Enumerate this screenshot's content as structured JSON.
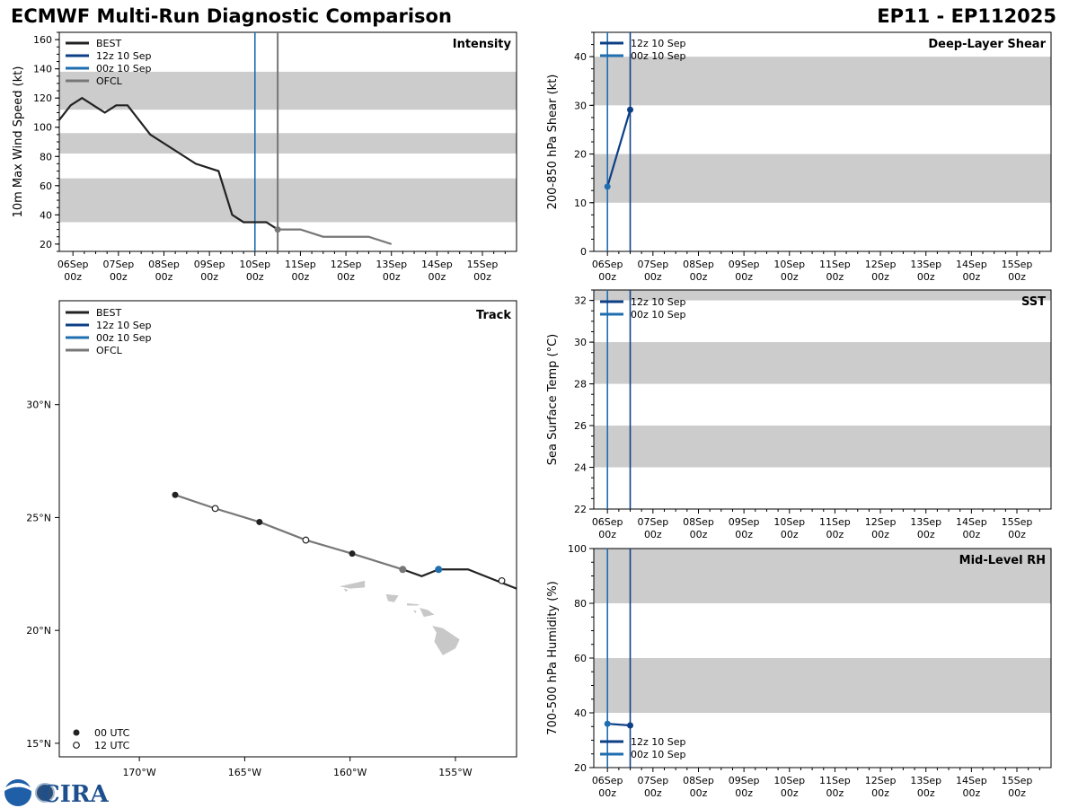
{
  "header": {
    "title": "ECMWF Multi-Run Diagnostic Comparison",
    "storm_id": "EP11 - EP112025"
  },
  "colors": {
    "best": "#222222",
    "run_12z": "#0d3f86",
    "run_00z": "#1f6eb0",
    "ofcl": "#777777",
    "band": "#cccccc"
  },
  "time_axis": {
    "labels": [
      [
        "06Sep",
        "00z"
      ],
      [
        "07Sep",
        "00z"
      ],
      [
        "08Sep",
        "00z"
      ],
      [
        "09Sep",
        "00z"
      ],
      [
        "10Sep",
        "00z"
      ],
      [
        "11Sep",
        "00z"
      ],
      [
        "12Sep",
        "00z"
      ],
      [
        "13Sep",
        "00z"
      ],
      [
        "14Sep",
        "00z"
      ],
      [
        "15Sep",
        "00z"
      ]
    ],
    "range_days": [
      -0.3,
      9.75
    ]
  },
  "logo": {
    "text": "CIRA",
    "badge": "NOAA"
  },
  "chart_data": [
    {
      "id": "intensity",
      "type": "line",
      "title": "Intensity",
      "ylabel": "10m Max Wind Speed (kt)",
      "ylim": [
        15,
        165
      ],
      "yticks": [
        20,
        40,
        60,
        80,
        100,
        120,
        140,
        160
      ],
      "bands": [
        [
          35,
          65
        ],
        [
          82,
          96
        ],
        [
          112,
          138
        ]
      ],
      "legend": [
        "BEST",
        "12z 10 Sep",
        "00z 10 Sep",
        "OFCL"
      ],
      "vlines": [
        {
          "x": 0.0,
          "series": "00z 10 Sep"
        },
        {
          "x": 0.5,
          "series": "OFCL"
        }
      ],
      "series": [
        {
          "name": "BEST",
          "x": [
            -4.3,
            -4.05,
            -3.8,
            -3.3,
            -3.05,
            -2.8,
            -2.3,
            -1.8,
            -1.3,
            -0.8,
            -0.5,
            -0.25,
            0.0,
            0.25,
            0.5
          ],
          "y": [
            105,
            115,
            120,
            110,
            115,
            115,
            95,
            85,
            75,
            70,
            40,
            35,
            35,
            35,
            30
          ]
        },
        {
          "name": "OFCL",
          "x": [
            0.5,
            1.0,
            1.5,
            2.0,
            2.5,
            3.0
          ],
          "y": [
            30,
            30,
            25,
            25,
            25,
            20
          ],
          "marker_x": 0.5,
          "marker_y": 30
        }
      ],
      "x_offset_days": 4
    },
    {
      "id": "shear",
      "type": "line",
      "title": "Deep-Layer Shear",
      "ylabel": "200-850 hPa Shear (kt)",
      "ylim": [
        0,
        45
      ],
      "yticks": [
        0,
        10,
        20,
        30,
        40
      ],
      "bands": [
        [
          10,
          20
        ],
        [
          30,
          40
        ]
      ],
      "legend": [
        "12z 10 Sep",
        "00z 10 Sep"
      ],
      "series": [
        {
          "name": "12z 10 Sep",
          "x": [
            0.0,
            0.5
          ],
          "y": [
            13.3,
            29.1
          ]
        }
      ],
      "points": [
        {
          "name": "00z 10 Sep",
          "x": 0.0,
          "y": 13.3
        },
        {
          "name": "12z 10 Sep",
          "x": 0.5,
          "y": 29.1
        }
      ]
    },
    {
      "id": "sst",
      "type": "line",
      "title": "SST",
      "ylabel": "Sea Surface Temp (°C)",
      "ylim": [
        22,
        32.5
      ],
      "yticks": [
        22,
        24,
        26,
        28,
        30,
        32
      ],
      "bands": [
        [
          24,
          26
        ],
        [
          28,
          30
        ],
        [
          32,
          32.5
        ]
      ],
      "legend": [
        "12z 10 Sep",
        "00z 10 Sep"
      ],
      "series": []
    },
    {
      "id": "rh",
      "type": "line",
      "title": "Mid-Level RH",
      "ylabel": "700-500 hPa Humidity (%)",
      "ylim": [
        20,
        100
      ],
      "yticks": [
        20,
        40,
        60,
        80,
        100
      ],
      "bands": [
        [
          40,
          60
        ],
        [
          80,
          100
        ]
      ],
      "legend": [
        "12z 10 Sep",
        "00z 10 Sep"
      ],
      "series": [
        {
          "name": "12z 10 Sep",
          "x": [
            0.0,
            0.5
          ],
          "y": [
            36,
            35.4
          ]
        }
      ],
      "points": [
        {
          "name": "00z 10 Sep",
          "x": 0.0,
          "y": 36
        },
        {
          "name": "12z 10 Sep",
          "x": 0.5,
          "y": 35.4
        }
      ]
    },
    {
      "id": "track",
      "type": "scatter",
      "title": "Track",
      "xlim": [
        -173.8,
        -152.1
      ],
      "ylim": [
        14.4,
        34.6
      ],
      "xticks": [
        {
          "v": -170,
          "label": "170°W"
        },
        {
          "v": -165,
          "label": "165°W"
        },
        {
          "v": -160,
          "label": "160°W"
        },
        {
          "v": -155,
          "label": "155°W"
        }
      ],
      "yticks": [
        {
          "v": 15,
          "label": "15°N"
        },
        {
          "v": 20,
          "label": "20°N"
        },
        {
          "v": 25,
          "label": "25°N"
        },
        {
          "v": 30,
          "label": "30°N"
        }
      ],
      "legend": [
        "BEST",
        "12z 10 Sep",
        "00z 10 Sep",
        "OFCL"
      ],
      "marker_legend": [
        "00 UTC",
        "12 UTC"
      ],
      "best": {
        "lon": [
          -155.8,
          -154.4,
          -152.1
        ],
        "lat": [
          22.7,
          22.7,
          21.85
        ]
      },
      "ofcl": {
        "lon": [
          -168.3,
          -166.4,
          -164.3,
          -162.1,
          -159.9,
          -157.5
        ],
        "lat": [
          26.0,
          25.4,
          24.8,
          24.0,
          23.4,
          22.7
        ]
      },
      "ofcl_best_join": {
        "lon": [
          -157.5,
          -156.6,
          -155.8
        ],
        "lat": [
          22.7,
          22.4,
          22.7
        ]
      },
      "markers_00utc": [
        {
          "lon": -168.3,
          "lat": 26.0
        },
        {
          "lon": -164.3,
          "lat": 24.8
        },
        {
          "lon": -159.9,
          "lat": 23.4
        }
      ],
      "markers_12utc": [
        {
          "lon": -166.4,
          "lat": 25.4
        },
        {
          "lon": -162.1,
          "lat": 24.0
        },
        {
          "lon": -152.8,
          "lat": 22.2
        }
      ],
      "marker_ofcl_start": {
        "lon": -157.5,
        "lat": 22.7
      },
      "marker_current": {
        "lon": -155.8,
        "lat": 22.7
      }
    }
  ]
}
